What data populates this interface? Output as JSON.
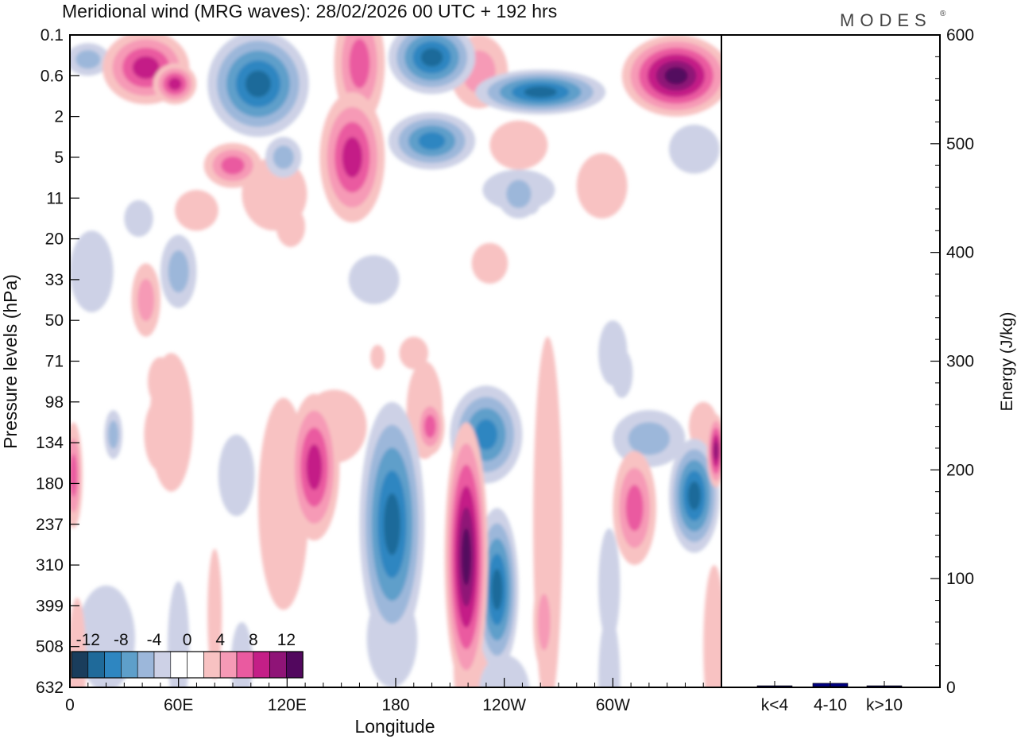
{
  "brand": "MODES",
  "brand_mark": "®",
  "chart_data": {
    "type": "contour",
    "title": "Meridional wind (MRG waves):  28/02/2026  00 UTC  + 192 hrs",
    "xlabel": "Longitude",
    "ylabel": "Pressure levels (hPa)",
    "x_ticks": [
      {
        "lon": 0,
        "label": "0"
      },
      {
        "lon": 60,
        "label": "60E"
      },
      {
        "lon": 120,
        "label": "120E"
      },
      {
        "lon": 180,
        "label": "180"
      },
      {
        "lon": 240,
        "label": "120W"
      },
      {
        "lon": 300,
        "label": "60W"
      }
    ],
    "x_range": [
      0,
      360
    ],
    "y_levels": [
      "0.1",
      "0.6",
      "2",
      "5",
      "11",
      "20",
      "33",
      "50",
      "71",
      "98",
      "134",
      "180",
      "237",
      "310",
      "399",
      "508",
      "632"
    ],
    "colorbar": {
      "labels": [
        "-12",
        "-8",
        "-4",
        "0",
        "4",
        "8",
        "12"
      ],
      "colors": [
        "#1a3d5c",
        "#1f6a9a",
        "#2e86c1",
        "#5e9fca",
        "#9cb7da",
        "#cdd1e6",
        "#ffffff",
        "#ffffff",
        "#f8c2c2",
        "#f69ab6",
        "#ea5aa0",
        "#c41f87",
        "#8f1477",
        "#52075e"
      ]
    },
    "level_colors": {
      "-12": "#1a3d5c",
      "-10": "#1f6a9a",
      "-8": "#2e86c1",
      "-6": "#5e9fca",
      "-4": "#9cb7da",
      "-2": "#cdd1e6",
      "2": "#f8c2c2",
      "4": "#f69ab6",
      "6": "#ea5aa0",
      "8": "#c41f87",
      "10": "#8f1477",
      "12": "#52075e"
    },
    "blobs": [
      {
        "lon": 10,
        "lev": 0.6,
        "w": 12,
        "h": 0.4,
        "v": -4
      },
      {
        "lon": 42,
        "lev": 0.8,
        "w": 24,
        "h": 0.9,
        "v": 8
      },
      {
        "lon": 58,
        "lev": 1.2,
        "w": 12,
        "h": 0.5,
        "v": 8
      },
      {
        "lon": 90,
        "lev": 3.2,
        "w": 16,
        "h": 0.55,
        "v": 6
      },
      {
        "lon": 70,
        "lev": 4.3,
        "w": 12,
        "h": 0.5,
        "v": 2
      },
      {
        "lon": 38,
        "lev": 4.5,
        "w": 8,
        "h": 0.45,
        "v": -2
      },
      {
        "lon": 60,
        "lev": 5.8,
        "w": 10,
        "h": 0.9,
        "v": -4
      },
      {
        "lon": 12,
        "lev": 5.8,
        "w": 12,
        "h": 1.0,
        "v": -2
      },
      {
        "lon": 42,
        "lev": 6.5,
        "w": 8,
        "h": 0.9,
        "v": 4
      },
      {
        "lon": 50,
        "lev": 8.5,
        "w": 7,
        "h": 0.6,
        "v": 2
      },
      {
        "lon": 50,
        "lev": 9.8,
        "w": 9,
        "h": 0.9,
        "v": 2
      },
      {
        "lon": 104,
        "lev": 1.2,
        "w": 28,
        "h": 1.3,
        "v": -10
      },
      {
        "lon": 118,
        "lev": 3.0,
        "w": 10,
        "h": 0.5,
        "v": -4
      },
      {
        "lon": 113,
        "lev": 3.9,
        "w": 18,
        "h": 0.9,
        "v": 2
      },
      {
        "lon": 156,
        "lev": 3.0,
        "w": 18,
        "h": 1.6,
        "v": 8
      },
      {
        "lon": 160,
        "lev": 0.7,
        "w": 14,
        "h": 1.5,
        "v": 6
      },
      {
        "lon": 168,
        "lev": 6.0,
        "w": 14,
        "h": 0.6,
        "v": -2
      },
      {
        "lon": 200,
        "lev": 0.55,
        "w": 24,
        "h": 0.9,
        "v": -10
      },
      {
        "lon": 200,
        "lev": 2.6,
        "w": 24,
        "h": 0.7,
        "v": -8
      },
      {
        "lon": 226,
        "lev": 0.9,
        "w": 16,
        "h": 0.9,
        "v": 4
      },
      {
        "lon": 248,
        "lev": 2.7,
        "w": 16,
        "h": 0.6,
        "v": 2
      },
      {
        "lon": 260,
        "lev": 1.4,
        "w": 36,
        "h": 0.55,
        "v": -10
      },
      {
        "lon": 248,
        "lev": 3.8,
        "w": 20,
        "h": 0.5,
        "v": -2
      },
      {
        "lon": 294,
        "lev": 3.7,
        "w": 14,
        "h": 0.8,
        "v": 2
      },
      {
        "lon": 335,
        "lev": 1.0,
        "w": 30,
        "h": 1.0,
        "v": 12
      },
      {
        "lon": 345,
        "lev": 2.8,
        "w": 14,
        "h": 0.6,
        "v": -2
      },
      {
        "lon": 248,
        "lev": 3.9,
        "w": 12,
        "h": 0.6,
        "v": -4
      },
      {
        "lon": 255,
        "lev": 3.9,
        "w": 6,
        "h": 0.5,
        "v": -2
      },
      {
        "lon": 232,
        "lev": 5.6,
        "w": 10,
        "h": 0.5,
        "v": 2
      },
      {
        "lon": 122,
        "lev": 4.7,
        "w": 8,
        "h": 0.5,
        "v": 2
      },
      {
        "lon": 56,
        "lev": 9.5,
        "w": 12,
        "h": 1.7,
        "v": 2
      },
      {
        "lon": 92,
        "lev": 10.8,
        "w": 10,
        "h": 1.0,
        "v": -2
      },
      {
        "lon": 24,
        "lev": 9.8,
        "w": 5,
        "h": 0.6,
        "v": -4
      },
      {
        "lon": 2,
        "lev": 10.8,
        "w": 5,
        "h": 1.3,
        "v": 6
      },
      {
        "lon": 135,
        "lev": 10.6,
        "w": 14,
        "h": 1.8,
        "v": 8
      },
      {
        "lon": 118,
        "lev": 11.5,
        "w": 14,
        "h": 2.6,
        "v": 2
      },
      {
        "lon": 146,
        "lev": 9.6,
        "w": 18,
        "h": 0.9,
        "v": 2
      },
      {
        "lon": 178,
        "lev": 12.0,
        "w": 18,
        "h": 3.0,
        "v": -10
      },
      {
        "lon": 178,
        "lev": 14.8,
        "w": 14,
        "h": 1.2,
        "v": -2
      },
      {
        "lon": 196,
        "lev": 9.2,
        "w": 10,
        "h": 1.2,
        "v": 2
      },
      {
        "lon": 199,
        "lev": 9.6,
        "w": 8,
        "h": 0.7,
        "v": 6
      },
      {
        "lon": 219,
        "lev": 12.8,
        "w": 12,
        "h": 3.3,
        "v": 12
      },
      {
        "lon": 222,
        "lev": 15.6,
        "w": 10,
        "h": 1.1,
        "v": 2
      },
      {
        "lon": 236,
        "lev": 13.6,
        "w": 12,
        "h": 2.0,
        "v": -10
      },
      {
        "lon": 230,
        "lev": 9.8,
        "w": 20,
        "h": 1.2,
        "v": -8
      },
      {
        "lon": 240,
        "lev": 16.1,
        "w": 14,
        "h": 0.9,
        "v": -2
      },
      {
        "lon": 264,
        "lev": 12.0,
        "w": 8,
        "h": 4.6,
        "v": 2
      },
      {
        "lon": 262,
        "lev": 14.4,
        "w": 6,
        "h": 1.2,
        "v": 4
      },
      {
        "lon": 312,
        "lev": 11.6,
        "w": 12,
        "h": 1.4,
        "v": 6
      },
      {
        "lon": 298,
        "lev": 13.5,
        "w": 6,
        "h": 1.4,
        "v": -2
      },
      {
        "lon": 320,
        "lev": 9.9,
        "w": 20,
        "h": 0.7,
        "v": -4
      },
      {
        "lon": 345,
        "lev": 11.3,
        "w": 14,
        "h": 1.4,
        "v": -10
      },
      {
        "lon": 357,
        "lev": 10.2,
        "w": 5,
        "h": 0.9,
        "v": 10
      },
      {
        "lon": 350,
        "lev": 9.6,
        "w": 8,
        "h": 0.6,
        "v": 2
      },
      {
        "lon": 300,
        "lev": 7.8,
        "w": 8,
        "h": 0.8,
        "v": -2
      },
      {
        "lon": 298,
        "lev": 15.8,
        "w": 6,
        "h": 1.6,
        "v": -2
      },
      {
        "lon": 356,
        "lev": 15.0,
        "w": 6,
        "h": 2.0,
        "v": 2
      },
      {
        "lon": 20,
        "lev": 14.8,
        "w": 16,
        "h": 1.3,
        "v": -2
      },
      {
        "lon": 4,
        "lev": 15.4,
        "w": 5,
        "h": 1.6,
        "v": 2
      },
      {
        "lon": 60,
        "lev": 15.0,
        "w": 6,
        "h": 1.6,
        "v": -2
      },
      {
        "lon": 80,
        "lev": 14.2,
        "w": 4,
        "h": 1.6,
        "v": 2
      },
      {
        "lon": 95,
        "lev": 15.4,
        "w": 6,
        "h": 1.0,
        "v": -2
      },
      {
        "lon": 305,
        "lev": 8.3,
        "w": 6,
        "h": 0.6,
        "v": -2
      },
      {
        "lon": 170,
        "lev": 7.9,
        "w": 4,
        "h": 0.3,
        "v": 2
      },
      {
        "lon": 190,
        "lev": 7.8,
        "w": 8,
        "h": 0.4,
        "v": 2
      }
    ],
    "bar_panel": {
      "ylabel": "Energy (J/kg)",
      "ylim": [
        0,
        600
      ],
      "y_ticks": [
        0,
        100,
        200,
        300,
        400,
        500,
        600
      ],
      "categories": [
        "k<4",
        "4-10",
        "k>10"
      ],
      "values": [
        0,
        3,
        0
      ],
      "bar_color": "#000080"
    }
  }
}
